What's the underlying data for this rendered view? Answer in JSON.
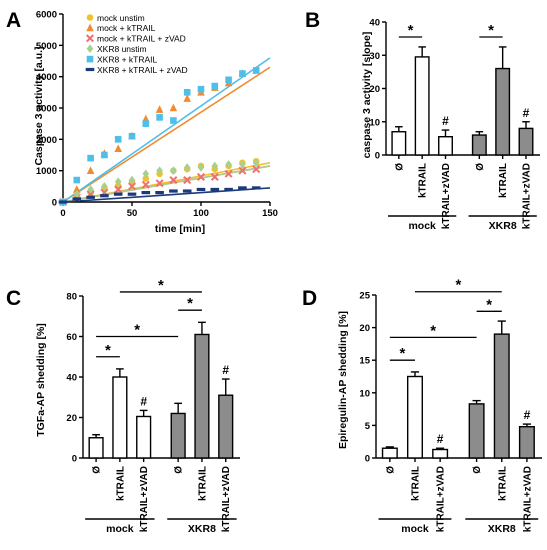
{
  "panels": [
    {
      "letter": "A",
      "chart_data": {
        "type": "scatter",
        "xlabel": "time [min]",
        "ylabel": "Caspase 3 activity [a.u.]",
        "xlim": [
          0,
          150
        ],
        "ylim": [
          0,
          6000
        ],
        "xticks": [
          "0",
          "50",
          "100",
          "150"
        ],
        "yticks": [
          "0",
          "1000",
          "2000",
          "3000",
          "4000",
          "5000",
          "6000"
        ],
        "legend_position": "top-left",
        "series": [
          {
            "name": "mock unstim",
            "color": "#f2c12e",
            "marker": "circle",
            "x": [
              0,
              10,
              20,
              30,
              40,
              50,
              60,
              70,
              80,
              90,
              100,
              110,
              120,
              130,
              140
            ],
            "y": [
              0,
              200,
              300,
              450,
              520,
              650,
              750,
              900,
              1000,
              1050,
              1150,
              1050,
              1150,
              1250,
              1300
            ],
            "fit_end": 1250
          },
          {
            "name": "mock + kTRAIL",
            "color": "#f28a30",
            "marker": "triangle",
            "x": [
              0,
              10,
              20,
              30,
              40,
              50,
              60,
              70,
              80,
              90,
              100,
              110,
              120,
              130,
              140
            ],
            "y": [
              0,
              400,
              1000,
              1550,
              1700,
              2100,
              2650,
              2950,
              3000,
              3300,
              3500,
              3650,
              3800,
              4100,
              4200
            ],
            "fit_end": 4300
          },
          {
            "name": "mock + kTRAIL + zVAD",
            "color": "#f07070",
            "marker": "cross",
            "x": [
              0,
              10,
              20,
              30,
              40,
              50,
              60,
              70,
              80,
              90,
              100,
              110,
              120,
              130,
              140
            ],
            "y": [
              0,
              150,
              250,
              300,
              400,
              500,
              550,
              600,
              700,
              700,
              800,
              800,
              900,
              1000,
              1050
            ],
            "fit_end": 1150
          },
          {
            "name": "XKR8 unstim",
            "color": "#a8d08d",
            "marker": "diamond",
            "x": [
              0,
              10,
              20,
              30,
              40,
              50,
              60,
              70,
              80,
              90,
              100,
              110,
              120,
              130,
              140
            ],
            "y": [
              0,
              250,
              400,
              500,
              650,
              700,
              900,
              1000,
              1000,
              1100,
              1100,
              1150,
              1200,
              1200,
              1250
            ],
            "fit_end": 1150
          },
          {
            "name": "XKR8 + kTRAIL",
            "color": "#4dbfea",
            "marker": "square",
            "x": [
              0,
              10,
              20,
              30,
              40,
              50,
              60,
              70,
              80,
              90,
              100,
              110,
              120,
              130,
              140
            ],
            "y": [
              0,
              700,
              1400,
              1500,
              2000,
              2100,
              2500,
              2700,
              2600,
              3500,
              3600,
              3700,
              3900,
              4100,
              4200
            ],
            "fit_end": 4600
          },
          {
            "name": "XKR8 + kTRAIL + zVAD",
            "color": "#1b3a7a",
            "marker": "dash",
            "x": [
              0,
              10,
              20,
              30,
              40,
              50,
              60,
              70,
              80,
              90,
              100,
              110,
              120,
              130,
              140
            ],
            "y": [
              0,
              100,
              150,
              200,
              250,
              250,
              300,
              300,
              350,
              350,
              400,
              400,
              400,
              450,
              450
            ],
            "fit_end": 450
          }
        ]
      }
    },
    {
      "letter": "B",
      "chart_data": {
        "type": "bar",
        "ylabel": "caspase 3 activity [slope]",
        "ylim": [
          0,
          40
        ],
        "yticks": [
          "0",
          "10",
          "20",
          "30",
          "40"
        ],
        "categories": [
          "Ø",
          "kTRAIL",
          "kTRAIL+zVAD",
          "Ø",
          "kTRAIL",
          "kTRAIL+zVAD"
        ],
        "groups": [
          "mock",
          "XKR8"
        ],
        "values": [
          7,
          29.5,
          5.5,
          6,
          26,
          8
        ],
        "errors": [
          1.5,
          3,
          2,
          1,
          6.5,
          2
        ],
        "fills": [
          "#ffffff",
          "#ffffff",
          "#ffffff",
          "#8c8c8c",
          "#8c8c8c",
          "#8c8c8c"
        ],
        "annotations": {
          "star": "*",
          "hash": "#",
          "hash_bars": [
            2,
            5
          ],
          "brackets": [
            {
              "from": 0,
              "to": 1,
              "y": 35.5
            },
            {
              "from": 3,
              "to": 4,
              "y": 35.5
            }
          ]
        }
      }
    },
    {
      "letter": "C",
      "chart_data": {
        "type": "bar",
        "ylabel": "TGFa-AP shedding [%]",
        "ylim": [
          0,
          80
        ],
        "yticks": [
          "0",
          "20",
          "40",
          "60",
          "80"
        ],
        "categories": [
          "Ø",
          "kTRAIL",
          "kTRAIL+zVAD",
          "Ø",
          "kTRAIL",
          "kTRAIL+zVAD"
        ],
        "groups": [
          "mock",
          "XKR8"
        ],
        "values": [
          10,
          40,
          20.5,
          22,
          61,
          31
        ],
        "errors": [
          1.5,
          4,
          3,
          5,
          6,
          8
        ],
        "fills": [
          "#ffffff",
          "#ffffff",
          "#ffffff",
          "#8c8c8c",
          "#8c8c8c",
          "#8c8c8c"
        ],
        "annotations": {
          "star": "*",
          "hash": "#",
          "hash_bars": [
            2,
            5
          ],
          "brackets": [
            {
              "from": 0,
              "to": 1,
              "y": 50
            },
            {
              "from": 0,
              "to": 3,
              "y": 60
            },
            {
              "from": 3,
              "to": 4,
              "y": 73
            },
            {
              "from": 1,
              "to": 4,
              "y": 82
            }
          ]
        }
      }
    },
    {
      "letter": "D",
      "chart_data": {
        "type": "bar",
        "ylabel": "Epiregulin-AP shedding [%]",
        "ylim": [
          0,
          25
        ],
        "yticks": [
          "0",
          "5",
          "10",
          "15",
          "20",
          "25"
        ],
        "categories": [
          "Ø",
          "kTRAIL",
          "kTRAIL+zVAD",
          "Ø",
          "kTRAIL",
          "kTRAIL+zVAD"
        ],
        "groups": [
          "mock",
          "XKR8"
        ],
        "values": [
          1.5,
          12.5,
          1.3,
          8.3,
          19,
          4.8
        ],
        "errors": [
          0.2,
          0.7,
          0.2,
          0.5,
          2,
          0.4
        ],
        "fills": [
          "#ffffff",
          "#ffffff",
          "#ffffff",
          "#8c8c8c",
          "#8c8c8c",
          "#8c8c8c"
        ],
        "annotations": {
          "star": "*",
          "hash": "#",
          "hash_bars": [
            2,
            5
          ],
          "brackets": [
            {
              "from": 0,
              "to": 1,
              "y": 15
            },
            {
              "from": 0,
              "to": 3,
              "y": 18.5
            },
            {
              "from": 3,
              "to": 4,
              "y": 22.5
            },
            {
              "from": 1,
              "to": 4,
              "y": 25.5
            }
          ]
        }
      }
    }
  ]
}
